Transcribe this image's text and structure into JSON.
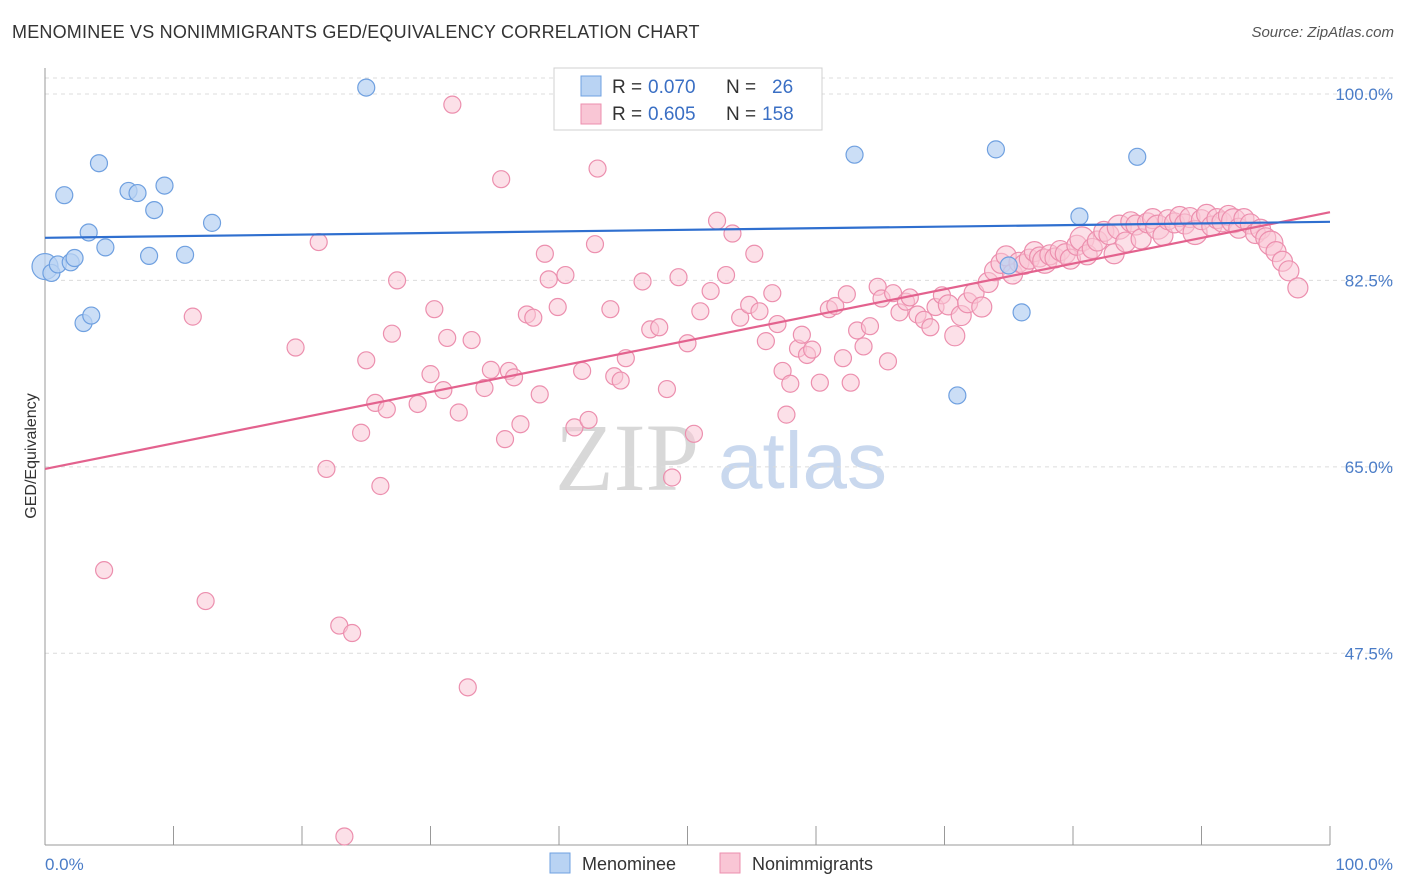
{
  "title": "MENOMINEE VS NONIMMIGRANTS GED/EQUIVALENCY CORRELATION CHART",
  "source": "Source: ZipAtlas.com",
  "watermark": {
    "zip": "ZIP",
    "atlas": "atlas"
  },
  "colors": {
    "menominee_fill": "#b9d3f3",
    "menominee_stroke": "#6fa0e0",
    "menominee_line": "#2f6fcf",
    "nonimm_fill": "#f9c6d5",
    "nonimm_stroke": "#ec8fae",
    "nonimm_line": "#e3628e",
    "tick_text": "#4a7cc7"
  },
  "legend_box": {
    "rows": [
      {
        "r_label": "R =",
        "r_value": "0.070",
        "n_label": "N =",
        "n_value": "26"
      },
      {
        "r_label": "R =",
        "r_value": "0.605",
        "n_label": "N =",
        "n_value": "158"
      }
    ]
  },
  "bottom_legend": [
    "Menominee",
    "Nonimmigrants"
  ],
  "chart_data": {
    "type": "scatter",
    "title": "MENOMINEE VS NONIMMIGRANTS GED/EQUIVALENCY CORRELATION CHART",
    "xlabel": "",
    "ylabel": "GED/Equivalency",
    "xlim": [
      0,
      100
    ],
    "ylim": [
      29.5,
      101.5
    ],
    "x_tick_labels": [
      "0.0%",
      "100.0%"
    ],
    "y_tick_labels": [
      "100.0%",
      "82.5%",
      "65.0%",
      "47.5%"
    ],
    "y_ticks": [
      100.0,
      82.5,
      65.0,
      47.5
    ],
    "grid": true,
    "legend_position": "top-center",
    "series": [
      {
        "name": "Menominee",
        "r": 0.07,
        "n": 26,
        "trend": {
          "x": [
            0,
            100
          ],
          "y": [
            86.5,
            88.0
          ]
        },
        "points": [
          [
            0.0,
            83.8
          ],
          [
            0.5,
            83.2
          ],
          [
            1.0,
            84.0
          ],
          [
            1.5,
            90.5
          ],
          [
            2.0,
            84.2
          ],
          [
            2.3,
            84.6
          ],
          [
            3.0,
            78.5
          ],
          [
            3.4,
            87.0
          ],
          [
            3.6,
            79.2
          ],
          [
            4.2,
            93.5
          ],
          [
            4.7,
            85.6
          ],
          [
            6.5,
            90.9
          ],
          [
            7.2,
            90.7
          ],
          [
            8.1,
            84.8
          ],
          [
            8.5,
            89.1
          ],
          [
            9.3,
            91.4
          ],
          [
            10.9,
            84.9
          ],
          [
            13.0,
            87.9
          ],
          [
            25.0,
            100.6
          ],
          [
            63.0,
            94.3
          ],
          [
            74.0,
            94.8
          ],
          [
            75.0,
            83.9
          ],
          [
            76.0,
            79.5
          ],
          [
            71.0,
            71.7
          ],
          [
            80.5,
            88.5
          ],
          [
            85.0,
            94.1
          ]
        ]
      },
      {
        "name": "Nonimmigrants",
        "r": 0.605,
        "n": 158,
        "trend": {
          "x": [
            0,
            100
          ],
          "y": [
            64.8,
            88.9
          ]
        },
        "points": [
          [
            4.6,
            55.3
          ],
          [
            11.5,
            79.1
          ],
          [
            12.5,
            52.4
          ],
          [
            19.5,
            76.2
          ],
          [
            21.3,
            86.1
          ],
          [
            21.9,
            64.8
          ],
          [
            22.9,
            50.1
          ],
          [
            23.3,
            30.3
          ],
          [
            23.9,
            49.4
          ],
          [
            24.6,
            68.2
          ],
          [
            25.0,
            75.0
          ],
          [
            25.7,
            71.0
          ],
          [
            26.1,
            63.2
          ],
          [
            26.6,
            70.4
          ],
          [
            27.0,
            77.5
          ],
          [
            27.4,
            82.5
          ],
          [
            29.0,
            70.9
          ],
          [
            30.0,
            73.7
          ],
          [
            30.3,
            79.8
          ],
          [
            31.0,
            72.2
          ],
          [
            31.3,
            77.1
          ],
          [
            31.7,
            99.0
          ],
          [
            32.2,
            70.1
          ],
          [
            32.9,
            44.3
          ],
          [
            33.2,
            76.9
          ],
          [
            34.2,
            72.4
          ],
          [
            34.7,
            74.1
          ],
          [
            35.5,
            92.0
          ],
          [
            35.8,
            67.6
          ],
          [
            36.1,
            74.0
          ],
          [
            36.5,
            73.4
          ],
          [
            37.0,
            69.0
          ],
          [
            37.5,
            79.3
          ],
          [
            38.0,
            79.0
          ],
          [
            38.5,
            71.8
          ],
          [
            38.9,
            85.0
          ],
          [
            39.2,
            82.6
          ],
          [
            39.9,
            80.0
          ],
          [
            40.5,
            83.0
          ],
          [
            41.2,
            68.7
          ],
          [
            41.8,
            74.0
          ],
          [
            42.3,
            69.4
          ],
          [
            42.8,
            85.9
          ],
          [
            43.0,
            93.0
          ],
          [
            44.0,
            79.8
          ],
          [
            44.3,
            73.5
          ],
          [
            44.8,
            73.1
          ],
          [
            45.2,
            75.2
          ],
          [
            46.5,
            82.4
          ],
          [
            47.1,
            77.9
          ],
          [
            47.8,
            78.1
          ],
          [
            48.4,
            72.3
          ],
          [
            48.8,
            64.0
          ],
          [
            49.3,
            82.8
          ],
          [
            50.0,
            76.6
          ],
          [
            50.5,
            68.1
          ],
          [
            51.0,
            79.6
          ],
          [
            51.8,
            81.5
          ],
          [
            52.3,
            88.1
          ],
          [
            53.0,
            83.0
          ],
          [
            53.5,
            86.9
          ],
          [
            54.1,
            79.0
          ],
          [
            54.8,
            80.2
          ],
          [
            55.2,
            85.0
          ],
          [
            55.6,
            79.6
          ],
          [
            56.1,
            76.8
          ],
          [
            56.6,
            81.3
          ],
          [
            57.0,
            78.4
          ],
          [
            57.4,
            74.0
          ],
          [
            57.7,
            69.9
          ],
          [
            58.0,
            72.8
          ],
          [
            58.6,
            76.1
          ],
          [
            58.9,
            77.4
          ],
          [
            59.3,
            75.5
          ],
          [
            59.7,
            76.0
          ],
          [
            60.3,
            72.9
          ],
          [
            61.0,
            79.8
          ],
          [
            61.5,
            80.1
          ],
          [
            62.1,
            75.2
          ],
          [
            62.4,
            81.2
          ],
          [
            62.7,
            72.9
          ],
          [
            63.2,
            77.8
          ],
          [
            63.7,
            76.3
          ],
          [
            64.2,
            78.2
          ],
          [
            64.8,
            81.9
          ],
          [
            65.1,
            80.8
          ],
          [
            65.6,
            74.9
          ],
          [
            66.0,
            81.3
          ],
          [
            66.5,
            79.5
          ],
          [
            67.0,
            80.5
          ],
          [
            67.3,
            80.9
          ],
          [
            67.9,
            79.3
          ],
          [
            68.4,
            78.8
          ],
          [
            68.9,
            78.1
          ],
          [
            69.3,
            80.0
          ],
          [
            69.8,
            81.1
          ],
          [
            70.3,
            80.2
          ],
          [
            70.8,
            77.3
          ],
          [
            71.3,
            79.2
          ],
          [
            71.8,
            80.4
          ],
          [
            72.3,
            81.3
          ],
          [
            72.9,
            80.0
          ],
          [
            73.4,
            82.3
          ],
          [
            73.9,
            83.4
          ],
          [
            74.4,
            84.1
          ],
          [
            74.8,
            84.8
          ],
          [
            75.3,
            83.1
          ],
          [
            75.8,
            84.2
          ],
          [
            76.2,
            84.0
          ],
          [
            76.6,
            84.5
          ],
          [
            77.0,
            85.2
          ],
          [
            77.4,
            84.7
          ],
          [
            77.8,
            84.3
          ],
          [
            78.2,
            84.9
          ],
          [
            78.6,
            84.6
          ],
          [
            79.0,
            85.3
          ],
          [
            79.4,
            85.0
          ],
          [
            79.8,
            84.5
          ],
          [
            80.3,
            85.8
          ],
          [
            80.7,
            86.4
          ],
          [
            81.1,
            84.9
          ],
          [
            81.5,
            85.5
          ],
          [
            81.9,
            86.2
          ],
          [
            82.4,
            87.1
          ],
          [
            82.8,
            86.8
          ],
          [
            83.2,
            85.0
          ],
          [
            83.6,
            87.5
          ],
          [
            84.1,
            86.1
          ],
          [
            84.5,
            88.0
          ],
          [
            84.9,
            87.7
          ],
          [
            85.3,
            86.4
          ],
          [
            85.8,
            87.9
          ],
          [
            86.2,
            88.3
          ],
          [
            86.6,
            87.5
          ],
          [
            87.0,
            86.7
          ],
          [
            87.4,
            88.2
          ],
          [
            87.9,
            87.9
          ],
          [
            88.3,
            88.5
          ],
          [
            88.7,
            87.8
          ],
          [
            89.1,
            88.4
          ],
          [
            89.5,
            87.0
          ],
          [
            90.0,
            88.2
          ],
          [
            90.4,
            88.7
          ],
          [
            90.8,
            87.6
          ],
          [
            91.2,
            88.3
          ],
          [
            91.6,
            88.0
          ],
          [
            92.1,
            88.6
          ],
          [
            92.5,
            88.1
          ],
          [
            92.9,
            87.4
          ],
          [
            93.3,
            88.3
          ],
          [
            93.8,
            87.8
          ],
          [
            94.2,
            86.9
          ],
          [
            94.6,
            87.3
          ],
          [
            95.0,
            86.5
          ],
          [
            95.4,
            86.0
          ],
          [
            95.8,
            85.2
          ],
          [
            96.3,
            84.3
          ],
          [
            96.8,
            83.4
          ],
          [
            97.5,
            81.8
          ]
        ]
      }
    ]
  }
}
